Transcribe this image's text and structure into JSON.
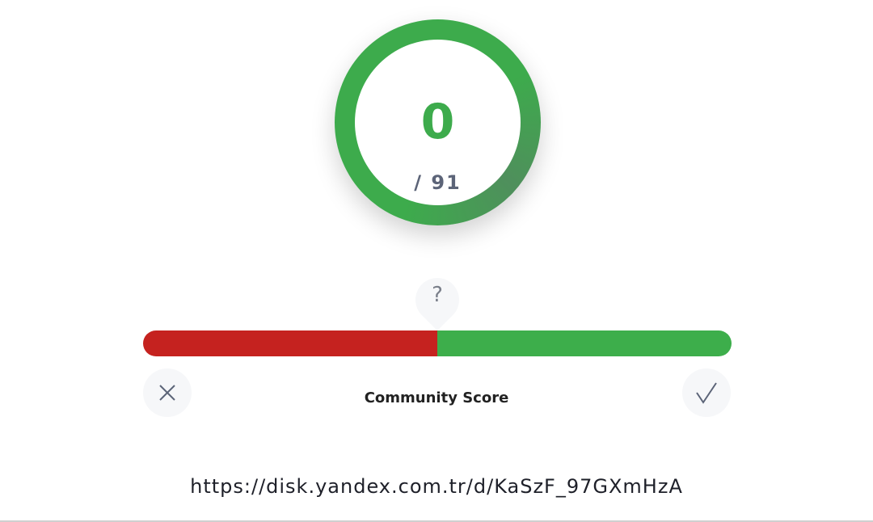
{
  "detection": {
    "score": "0",
    "total": "/ 91",
    "color": "#3dab4c"
  },
  "community": {
    "label": "Community Score",
    "help_icon": "?",
    "malicious_fraction": 0.5,
    "colors": {
      "malicious": "#c5221f",
      "harmless": "#3dae4b"
    },
    "downvote_icon": "close-icon",
    "upvote_icon": "check-icon"
  },
  "target": {
    "url": "https://disk.yandex.com.tr/d/KaSzF_97GXmHzA"
  }
}
